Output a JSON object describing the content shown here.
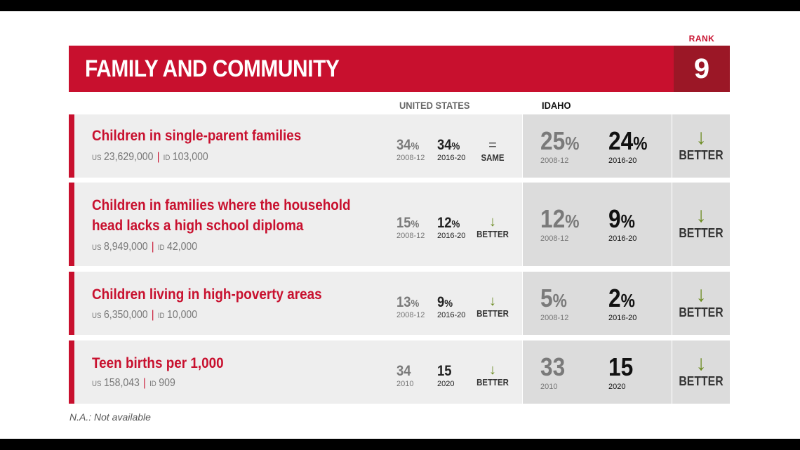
{
  "rank_label": "RANK",
  "banner_title": "FAMILY AND COMMUNITY",
  "rank_value": "9",
  "columns": {
    "us": "UNITED STATES",
    "id": "IDAHO"
  },
  "rows": [
    {
      "title_lines": [
        "Children in single-parent families"
      ],
      "us_tag": "US",
      "us_count": "23,629,000",
      "id_tag": "ID",
      "id_count": "103,000",
      "us_v1": "34",
      "us_v1_unit": "%",
      "us_y1": "2008-12",
      "us_v2": "34",
      "us_v2_unit": "%",
      "us_y2": "2016-20",
      "us_symbol": "=",
      "us_change": "SAME",
      "id_v1": "25",
      "id_v1_unit": "%",
      "id_y1": "2008-12",
      "id_v2": "24",
      "id_v2_unit": "%",
      "id_y2": "2016-20",
      "trend_symbol": "↓",
      "trend": "BETTER"
    },
    {
      "title_lines": [
        "Children in families where the household",
        "head lacks a high school diploma"
      ],
      "us_tag": "US",
      "us_count": "8,949,000",
      "id_tag": "ID",
      "id_count": "42,000",
      "us_v1": "15",
      "us_v1_unit": "%",
      "us_y1": "2008-12",
      "us_v2": "12",
      "us_v2_unit": "%",
      "us_y2": "2016-20",
      "us_symbol": "↓",
      "us_change": "BETTER",
      "id_v1": "12",
      "id_v1_unit": "%",
      "id_y1": "2008-12",
      "id_v2": "9",
      "id_v2_unit": "%",
      "id_y2": "2016-20",
      "trend_symbol": "↓",
      "trend": "BETTER"
    },
    {
      "title_lines": [
        "Children living in high-poverty areas"
      ],
      "us_tag": "US",
      "us_count": "6,350,000",
      "id_tag": "ID",
      "id_count": "10,000",
      "us_v1": "13",
      "us_v1_unit": "%",
      "us_y1": "2008-12",
      "us_v2": "9",
      "us_v2_unit": "%",
      "us_y2": "2016-20",
      "us_symbol": "↓",
      "us_change": "BETTER",
      "id_v1": "5",
      "id_v1_unit": "%",
      "id_y1": "2008-12",
      "id_v2": "2",
      "id_v2_unit": "%",
      "id_y2": "2016-20",
      "trend_symbol": "↓",
      "trend": "BETTER"
    },
    {
      "title_lines": [
        "Teen births per 1,000"
      ],
      "us_tag": "US",
      "us_count": "158,043",
      "id_tag": "ID",
      "id_count": "909",
      "us_v1": "34",
      "us_v1_unit": "",
      "us_y1": "2010",
      "us_v2": "15",
      "us_v2_unit": "",
      "us_y2": "2020",
      "us_symbol": "↓",
      "us_change": "BETTER",
      "id_v1": "33",
      "id_v1_unit": "",
      "id_y1": "2010",
      "id_v2": "15",
      "id_v2_unit": "",
      "id_y2": "2020",
      "trend_symbol": "↓",
      "trend": "BETTER"
    }
  ],
  "footnote": "N.A.: Not available"
}
